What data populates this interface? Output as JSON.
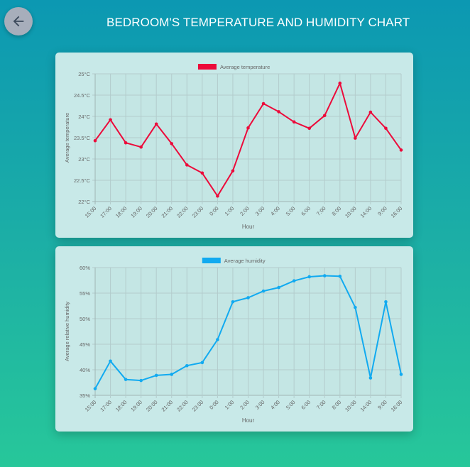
{
  "header": {
    "back_icon": "arrow-left-icon",
    "title": "BEDROOM'S TEMPERATURE AND HUMIDITY CHART"
  },
  "colors": {
    "temperature": "#ec0a3a",
    "humidity": "#11aaf0"
  },
  "chart_data": [
    {
      "type": "line",
      "categories": [
        "15:00",
        "17:00",
        "18:00",
        "19:00",
        "20:00",
        "21:00",
        "22:00",
        "23:00",
        "0:00",
        "1:00",
        "2:00",
        "3:00",
        "4:00",
        "5:00",
        "6:00",
        "7:00",
        "8:00",
        "10:00",
        "14:00",
        "9:00",
        "16:00"
      ],
      "series": [
        {
          "name": "Average temperature",
          "values": [
            23.43,
            23.92,
            23.38,
            23.28,
            23.82,
            23.36,
            22.86,
            22.67,
            22.13,
            22.72,
            23.73,
            24.3,
            24.11,
            23.87,
            23.72,
            24.02,
            24.78,
            23.49,
            24.1,
            23.72,
            23.21
          ]
        }
      ],
      "xlabel": "Hour",
      "ylabel": "Average temperature",
      "ylim": [
        22,
        25
      ],
      "yticks": [
        "22°C",
        "22.5°C",
        "23°C",
        "23.5°C",
        "24°C",
        "24.5°C",
        "25°C"
      ],
      "legend": "top-center",
      "grid": true
    },
    {
      "type": "line",
      "categories": [
        "15:00",
        "17:00",
        "18:00",
        "19:00",
        "20:00",
        "21:00",
        "22:00",
        "23:00",
        "0:00",
        "1:00",
        "2:00",
        "3:00",
        "4:00",
        "5:00",
        "6:00",
        "7:00",
        "8:00",
        "10:00",
        "14:00",
        "9:00",
        "16:00"
      ],
      "series": [
        {
          "name": "Average humidity",
          "values": [
            36.3,
            41.7,
            38.1,
            37.9,
            38.9,
            39.1,
            40.8,
            41.4,
            45.9,
            53.3,
            54.1,
            55.4,
            56.1,
            57.4,
            58.2,
            58.4,
            58.3,
            52.2,
            38.4,
            53.3,
            39.1
          ]
        }
      ],
      "xlabel": "Hour",
      "ylabel": "Average relative humidity",
      "ylim": [
        35,
        60
      ],
      "yticks": [
        "35%",
        "40%",
        "45%",
        "50%",
        "55%",
        "60%"
      ],
      "legend": "top-center",
      "grid": true
    }
  ]
}
